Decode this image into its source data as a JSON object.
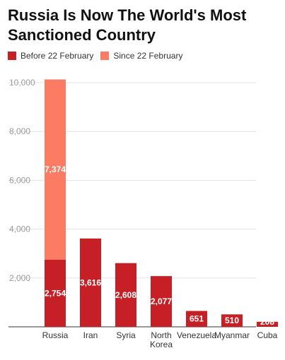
{
  "chart_data": {
    "type": "bar",
    "stacked": true,
    "title": "Russia Is Now The World's Most Sanctioned Country",
    "categories": [
      "Russia",
      "Iran",
      "Syria",
      "North Korea",
      "Venezuela",
      "Myanmar",
      "Cuba"
    ],
    "category_lines": [
      [
        "Russia"
      ],
      [
        "Iran"
      ],
      [
        "Syria"
      ],
      [
        "North",
        "Korea"
      ],
      [
        "Venezuela"
      ],
      [
        "Myanmar"
      ],
      [
        "Cuba"
      ]
    ],
    "series": [
      {
        "name": "Before 22 February",
        "color": "#c62026",
        "values": [
          2754,
          3616,
          2608,
          2077,
          651,
          510,
          208
        ],
        "labels": [
          "2,754",
          "3,616",
          "2,608",
          "2,077",
          "651",
          "510",
          "208"
        ]
      },
      {
        "name": "Since 22 February",
        "color": "#fb7b63",
        "values": [
          7374,
          0,
          0,
          0,
          0,
          0,
          0
        ],
        "labels": [
          "7,374",
          "",
          "",
          "",
          "",
          "",
          ""
        ]
      }
    ],
    "ylim": [
      0,
      10000
    ],
    "yticks": [
      2000,
      4000,
      6000,
      8000,
      10000
    ],
    "ytick_labels": [
      "2,000",
      "4,000",
      "6,000",
      "8,000",
      "10,000"
    ],
    "grid": true,
    "legend_position": "top-left",
    "xlabel": "",
    "ylabel": ""
  }
}
